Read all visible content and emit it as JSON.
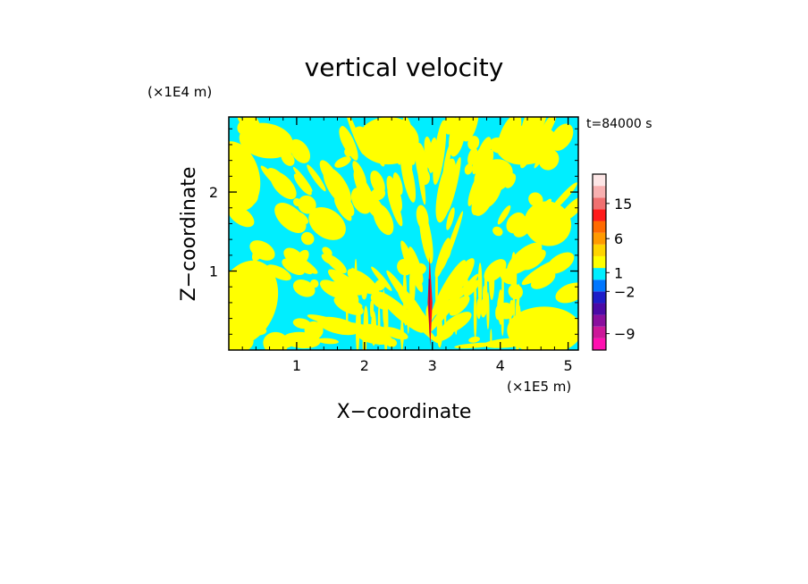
{
  "chart_data": {
    "type": "heatmap",
    "title": "vertical velocity",
    "xlabel": "X−coordinate",
    "ylabel": "Z−coordinate",
    "x_unit_label": "(×1E5 m)",
    "y_unit_label": "(×1E4 m)",
    "time_label": "t=84000 s",
    "xlim": [
      0,
      5.15
    ],
    "ylim": [
      0,
      2.95
    ],
    "x_ticks": [
      1,
      2,
      3,
      4,
      5
    ],
    "y_ticks": [
      1,
      2
    ],
    "grid": false,
    "legend": "right",
    "field_colors": {
      "positive": "#ffff00",
      "negative": "#00eeff",
      "strong_positive": "#ff1010",
      "strong_negative": "#3a0090"
    },
    "colorbar": {
      "ticks": [
        {
          "label": "15",
          "value": 15
        },
        {
          "label": "6",
          "value": 6
        },
        {
          "label": "1",
          "value": 1
        },
        {
          "label": "−2",
          "value": -2
        },
        {
          "label": "−9",
          "value": -9
        }
      ],
      "bins": [
        {
          "color": "#ff10b0"
        },
        {
          "color": "#cc1899"
        },
        {
          "color": "#8a0f9e"
        },
        {
          "color": "#4b0aa6"
        },
        {
          "color": "#1e1ec8"
        },
        {
          "color": "#0077ff"
        },
        {
          "color": "#00eeff"
        },
        {
          "color": "#ffff00"
        },
        {
          "color": "#ffd400"
        },
        {
          "color": "#ff9a00"
        },
        {
          "color": "#ff6a00"
        },
        {
          "color": "#ff1a1a"
        },
        {
          "color": "#f07070"
        },
        {
          "color": "#f8b0b0"
        },
        {
          "color": "#fde6e6"
        }
      ]
    }
  }
}
